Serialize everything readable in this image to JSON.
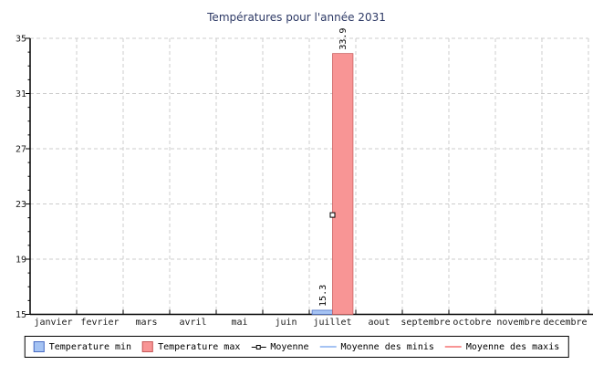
{
  "chart_data": {
    "type": "bar",
    "title": "Températures pour l'année 2031",
    "categories": [
      "janvier",
      "fevrier",
      "mars",
      "avril",
      "mai",
      "juin",
      "juillet",
      "aout",
      "septembre",
      "octobre",
      "novembre",
      "decembre"
    ],
    "series": [
      {
        "name": "Temperature min",
        "type": "bar",
        "color": "#a5c3f3",
        "border_color": "#4a6cc3",
        "values": [
          null,
          null,
          null,
          null,
          null,
          null,
          15.3,
          null,
          null,
          null,
          null,
          null
        ]
      },
      {
        "name": "Temperature max",
        "type": "bar",
        "color": "#f89595",
        "border_color": "#c75b5b",
        "values": [
          null,
          null,
          null,
          null,
          null,
          null,
          33.9,
          null,
          null,
          null,
          null,
          null
        ]
      },
      {
        "name": "Moyenne",
        "type": "point",
        "marker": "open-square",
        "color": "#000000",
        "values": [
          null,
          null,
          null,
          null,
          null,
          null,
          22.2,
          null,
          null,
          null,
          null,
          null
        ]
      },
      {
        "name": "Moyenne des minis",
        "type": "line",
        "color": "#a5c3f3",
        "values": []
      },
      {
        "name": "Moyenne des maxis",
        "type": "line",
        "color": "#f89595",
        "values": []
      }
    ],
    "bar_value_labels": [
      "15.3",
      "33.9"
    ],
    "ylim": [
      15,
      35
    ],
    "yticks": [
      15,
      19,
      23,
      27,
      31,
      35
    ],
    "minor_tick_step": 1,
    "grid": {
      "style": "dashed",
      "color": "#cccccc"
    },
    "legend_position": "bottom"
  },
  "colors": {
    "title": "#2e3a66",
    "axis": "#000000",
    "tick_label": "#1a1a1a",
    "grid": "#cccccc",
    "background": "#ffffff",
    "marker_fill": "#ffffff",
    "marker_stroke": "#000000"
  }
}
